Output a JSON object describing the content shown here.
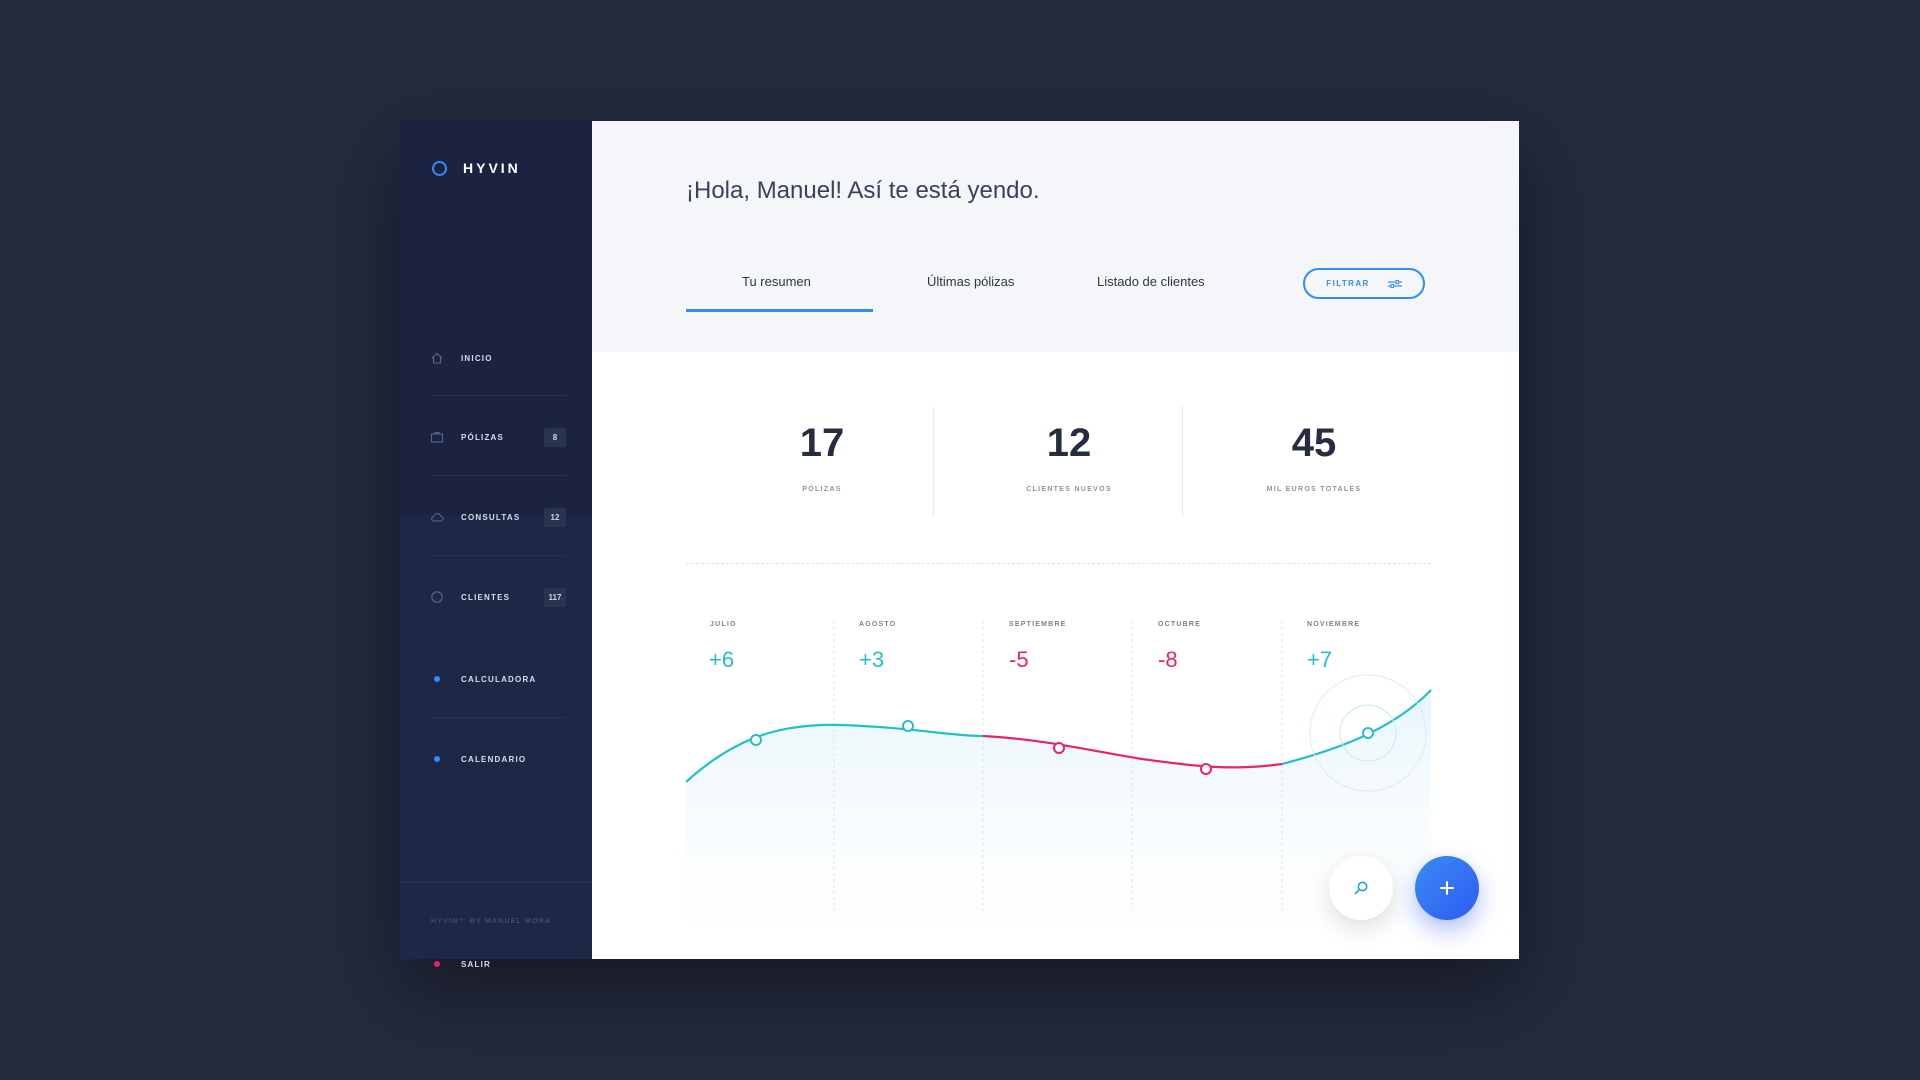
{
  "brand": {
    "name": "HYVIN"
  },
  "sidebar": {
    "items": [
      {
        "label": "INICIO",
        "icon": "home-icon",
        "badge": ""
      },
      {
        "label": "PÓLIZAS",
        "icon": "briefcase-icon",
        "badge": "8"
      },
      {
        "label": "CONSULTAS",
        "icon": "cloud-icon",
        "badge": "12"
      },
      {
        "label": "CLIENTES",
        "icon": "circle-icon",
        "badge": "117"
      }
    ],
    "tools": [
      {
        "label": "CALCULADORA",
        "color": "#2f8df5"
      },
      {
        "label": "CALENDARIO",
        "color": "#2f8df5"
      }
    ],
    "logout": {
      "label": "SALIR",
      "color": "#e9226a"
    },
    "footer": "HYVIN™ BY MANUEL MORA"
  },
  "header": {
    "greeting": "¡Hola, Manuel! Así te está yendo.",
    "tabs": [
      {
        "label": "Tu resumen",
        "active": true
      },
      {
        "label": "Últimas pólizas",
        "active": false
      },
      {
        "label": "Listado de clientes",
        "active": false
      }
    ],
    "filter_label": "FILTRAR"
  },
  "stats": [
    {
      "value": "17",
      "label": "PÓLIZAS"
    },
    {
      "value": "12",
      "label": "CLIENTES NUEVOS"
    },
    {
      "value": "45",
      "label": "MIL EUROS TOTALES"
    }
  ],
  "months": [
    {
      "name": "JULIO",
      "delta": "+6"
    },
    {
      "name": "AGOSTO",
      "delta": "+3"
    },
    {
      "name": "SEPTIEMBRE",
      "delta": "-5"
    },
    {
      "name": "OCTUBRE",
      "delta": "-8"
    },
    {
      "name": "NOVIEMBRE",
      "delta": "+7"
    }
  ],
  "colors": {
    "accent": "#2f8df5",
    "positive": "#21c1c7",
    "negative": "#e9226a",
    "sidebar": "#1d2847"
  }
}
